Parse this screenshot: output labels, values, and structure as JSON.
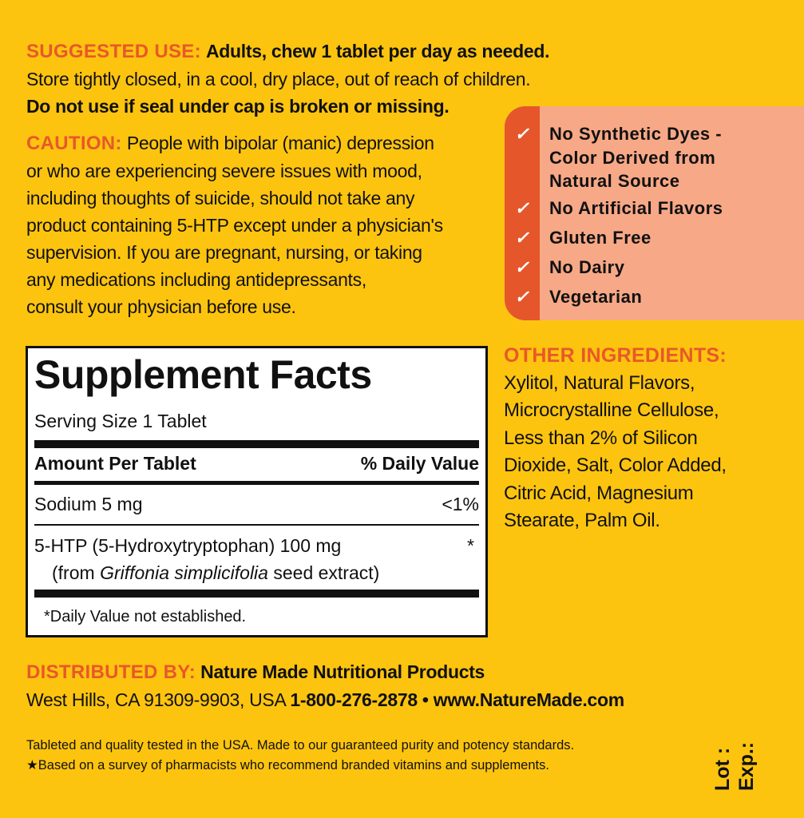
{
  "suggested_use": {
    "label": "SUGGESTED USE:",
    "text": "Adults, chew 1 tablet per day as needed.",
    "storage": "Store tightly closed, in a cool, dry place, out of reach of children.",
    "seal_warning": "Do not use if seal under cap is broken or missing."
  },
  "caution": {
    "label": "CAUTION:",
    "lines": [
      "People with bipolar (manic) depression",
      "or who are experiencing severe issues with mood,",
      "including thoughts of suicide, should not take any",
      "product containing 5-HTP except under a physician's",
      "supervision. If you are pregnant, nursing, or taking",
      "any medications including antidepressants,",
      "consult your physician before use."
    ]
  },
  "claims": {
    "icon": "check-icon",
    "items": [
      "No Synthetic Dyes -\nColor Derived from\nNatural Source",
      "No Artificial Flavors",
      "Gluten Free",
      "No Dairy",
      "Vegetarian"
    ]
  },
  "supplement_facts": {
    "title": "Supplement Facts",
    "serving_size": "Serving Size 1 Tablet",
    "col_amount": "Amount Per Tablet",
    "col_dv": "% Daily Value",
    "rows": [
      {
        "name": "Sodium  5 mg",
        "dv": "<1%"
      },
      {
        "name": "5-HTP (5-Hydroxytryptophan)  100 mg",
        "dv": "*",
        "sub_pre": "(from ",
        "sub_italic": "Griffonia simplicifolia",
        "sub_post": " seed extract)"
      }
    ],
    "footnote": "*Daily Value not established."
  },
  "other_ingredients": {
    "label": "OTHER INGREDIENTS:",
    "lines": [
      "Xylitol, Natural Flavors,",
      "Microcrystalline Cellulose,",
      "Less than 2% of Silicon",
      "Dioxide, Salt, Color Added,",
      "Citric Acid, Magnesium",
      "Stearate, Palm Oil."
    ]
  },
  "distributor": {
    "label": "DISTRIBUTED BY:",
    "name": "Nature Made Nutritional Products",
    "address": "West Hills, CA 91309-9903, USA ",
    "phone": "1-800-276-2878",
    "sep": " • ",
    "website": "www.NatureMade.com"
  },
  "footer": {
    "line1": "Tableted and quality tested in the USA. Made to our guaranteed purity and potency standards.",
    "line2": "★Based on a survey of pharmacists who recommend branded vitamins and supplements.",
    "lot": "Lot :",
    "exp": "Exp.:"
  },
  "colors": {
    "background": "#FDC40F",
    "accent": "#E8582A",
    "panel": "#F7A886",
    "panel_strip": "#E5562A"
  }
}
